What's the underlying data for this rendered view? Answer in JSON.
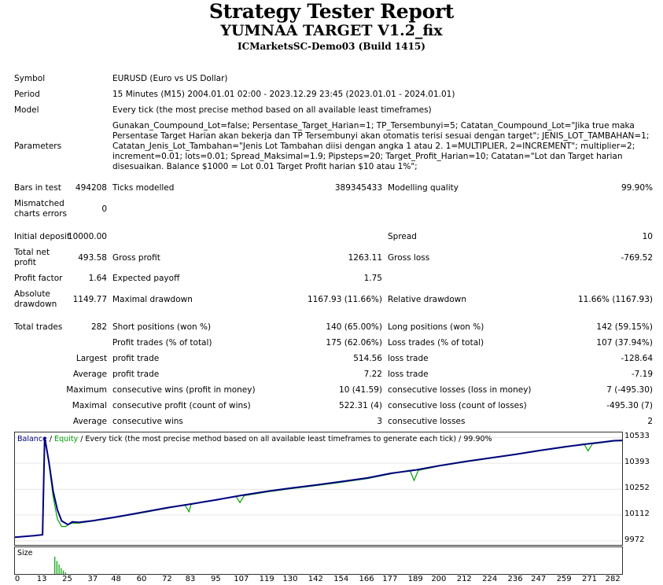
{
  "header": {
    "title": "Strategy Tester Report",
    "ea_name": "YUMNAA TARGET V1.2_fix",
    "server": "ICMarketsSC-Demo03 (Build 1415)"
  },
  "settings": {
    "symbol_label": "Symbol",
    "symbol": "EURUSD (Euro vs US Dollar)",
    "period_label": "Period",
    "period": "15 Minutes (M15) 2004.01.01 02:00 - 2023.12.29 23:45 (2023.01.01 - 2024.01.01)",
    "model_label": "Model",
    "model": "Every tick (the most precise method based on all available least timeframes)",
    "parameters_label": "Parameters",
    "parameters": "Gunakan_Coumpound_Lot=false; Persentase_Target_Harian=1; TP_Tersembunyi=5; Catatan_Coumpound_Lot=\"Jika true maka Persentase Target Harian akan bekerja dan TP Tersembunyi akan otomatis terisi sesuai dengan target\"; JENIS_LOT_TAMBAHAN=1; Catatan_Jenis_Lot_Tambahan=\"Jenis Lot Tambahan diisi dengan angka 1 atau 2. 1=MULTIPLIER, 2=INCREMENT\"; multiplier=2; increment=0.01; lots=0.01; Spread_Maksimal=1.9; Pipsteps=20; Target_Profit_Harian=10; Catatan=\"Lot dan Target harian disesuaikan. Balance $1000 = Lot 0.01 Target Profit harian $10 atau 1%\";"
  },
  "quality": {
    "bars_label": "Bars in test",
    "bars": "494208",
    "ticks_label": "Ticks modelled",
    "ticks": "389345433",
    "mq_label": "Modelling quality",
    "mq": "99.90%",
    "mismatch_label": "Mismatched charts errors",
    "mismatch": "0"
  },
  "results": {
    "initial_deposit_label": "Initial deposit",
    "initial_deposit": "10000.00",
    "spread_label": "Spread",
    "spread": "10",
    "net_profit_label": "Total net profit",
    "net_profit": "493.58",
    "gross_profit_label": "Gross profit",
    "gross_profit": "1263.11",
    "gross_loss_label": "Gross loss",
    "gross_loss": "-769.52",
    "profit_factor_label": "Profit factor",
    "profit_factor": "1.64",
    "expected_payoff_label": "Expected payoff",
    "expected_payoff": "1.75",
    "abs_dd_label": "Absolute drawdown",
    "abs_dd": "1149.77",
    "max_dd_label": "Maximal drawdown",
    "max_dd": "1167.93 (11.66%)",
    "rel_dd_label": "Relative drawdown",
    "rel_dd": "11.66% (1167.93)",
    "total_trades_label": "Total trades",
    "total_trades": "282",
    "short_label": "Short positions (won %)",
    "short": "140 (65.00%)",
    "long_label": "Long positions (won %)",
    "long": "142 (59.15%)",
    "profit_trades_label": "Profit trades (% of total)",
    "profit_trades": "175 (62.06%)",
    "loss_trades_label": "Loss trades (% of total)",
    "loss_trades": "107 (37.94%)",
    "largest_label": "Largest",
    "largest_profit_label": "profit trade",
    "largest_profit": "514.56",
    "largest_loss_label": "loss trade",
    "largest_loss": "-128.64",
    "average_label": "Average",
    "average_profit_label": "profit trade",
    "average_profit": "7.22",
    "average_loss_label": "loss trade",
    "average_loss": "-7.19",
    "maximum_label": "Maximum",
    "max_cons_wins_label": "consecutive wins (profit in money)",
    "max_cons_wins": "10 (41.59)",
    "max_cons_losses_label": "consecutive losses (loss in money)",
    "max_cons_losses": "7 (-495.30)",
    "maximal_label": "Maximal",
    "maximal_cons_profit_label": "consecutive profit (count of wins)",
    "maximal_cons_profit": "522.31 (4)",
    "maximal_cons_loss_label": "consecutive loss (count of losses)",
    "maximal_cons_loss": "-495.30 (7)",
    "avg_label": "Average",
    "avg_cons_wins_label": "consecutive wins",
    "avg_cons_wins": "3",
    "avg_cons_losses_label": "consecutive losses",
    "avg_cons_losses": "2"
  },
  "chart_legend": {
    "balance": "Balance",
    "sep1": " / ",
    "equity": "Equity",
    "rest": " / Every tick (the most precise method based on all available least timeframes to generate each tick) / 99.90%",
    "size_label": "Size"
  },
  "colors": {
    "balance": "#000080",
    "equity": "#00a000",
    "size": "#00a000"
  },
  "chart_data": {
    "type": "line",
    "xlabel": "",
    "ylabel": "",
    "y_ticks": [
      "10533",
      "10393",
      "10252",
      "10112",
      "9972"
    ],
    "x_ticks": [
      "0",
      "13",
      "25",
      "37",
      "48",
      "60",
      "72",
      "83",
      "95",
      "107",
      "119",
      "130",
      "142",
      "154",
      "166",
      "177",
      "189",
      "200",
      "212",
      "224",
      "236",
      "247",
      "259",
      "271",
      "282"
    ],
    "xlim": [
      0,
      286
    ],
    "ylim": [
      9950,
      10560
    ],
    "series": [
      {
        "name": "Balance",
        "x": [
          0,
          9,
          13,
          14,
          16,
          18,
          20,
          22,
          25,
          27,
          30,
          37,
          48,
          60,
          72,
          83,
          95,
          107,
          119,
          130,
          142,
          154,
          166,
          177,
          189,
          200,
          212,
          224,
          236,
          247,
          259,
          271,
          277,
          282,
          286
        ],
        "y": [
          9992,
          10000,
          10005,
          10535,
          10400,
          10240,
          10140,
          10080,
          10060,
          10075,
          10072,
          10082,
          10102,
          10127,
          10152,
          10172,
          10195,
          10219,
          10241,
          10258,
          10275,
          10294,
          10313,
          10338,
          10357,
          10380,
          10402,
          10422,
          10442,
          10462,
          10482,
          10500,
          10508,
          10515,
          10517
        ]
      },
      {
        "name": "Equity",
        "x": [
          0,
          9,
          13,
          14,
          16,
          18,
          20,
          22,
          24,
          25,
          27,
          30,
          37,
          48,
          60,
          72,
          80,
          82,
          83,
          95,
          104,
          106,
          108,
          119,
          130,
          142,
          154,
          166,
          177,
          186,
          188,
          190,
          200,
          212,
          224,
          236,
          247,
          259,
          268,
          270,
          272,
          282,
          286
        ],
        "y": [
          9992,
          10000,
          10005,
          10535,
          10390,
          10210,
          10090,
          10050,
          10050,
          10060,
          10068,
          10068,
          10080,
          10100,
          10124,
          10150,
          10168,
          10130,
          10170,
          10193,
          10215,
          10180,
          10217,
          10238,
          10255,
          10272,
          10290,
          10310,
          10335,
          10355,
          10300,
          10355,
          10378,
          10400,
          10420,
          10440,
          10460,
          10480,
          10498,
          10460,
          10498,
          10513,
          10515
        ]
      }
    ],
    "size_bars": {
      "x": [
        13,
        14,
        15,
        16,
        17,
        18
      ],
      "h": [
        1,
        0.75,
        0.55,
        0.35,
        0.2,
        0.1
      ]
    }
  }
}
